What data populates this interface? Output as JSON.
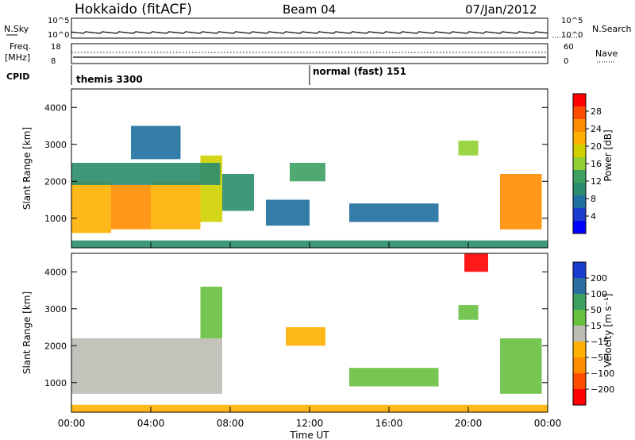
{
  "header": {
    "station": "Hokkaido (fitACF)",
    "beam": "Beam 04",
    "date": "07/Jan/2012"
  },
  "noise_panel": {
    "left_label": "N.Sky",
    "right_label": "N.Search",
    "left_ticks": [
      "10^5",
      "10^0"
    ],
    "right_ticks": [
      "10^5",
      "10^0"
    ]
  },
  "freq_panel": {
    "left_label": "Freq.",
    "left_unit": "[MHz]",
    "right_label": "Nave",
    "left_ticks": [
      "18",
      "8"
    ],
    "right_ticks": [
      "60",
      "0"
    ]
  },
  "cpid_panel": {
    "label": "CPID",
    "modes": [
      "themis 3300",
      "normal (fast) 151"
    ]
  },
  "power_colorbar": {
    "title": "Power [dB]",
    "ticks": [
      "28",
      "24",
      "20",
      "16",
      "12",
      "8",
      "4"
    ],
    "colors": [
      "#ff0000",
      "#ff4b00",
      "#ff8c00",
      "#ffb000",
      "#d0d000",
      "#90d030",
      "#3da060",
      "#2a8c6e",
      "#1f6fa0",
      "#1b3cd0",
      "#0000ff"
    ]
  },
  "velocity_colorbar": {
    "title": "Velocity [m s⁻¹]",
    "ticks": [
      "200",
      "100",
      "50",
      "15",
      "−15",
      "−50",
      "−100",
      "−200"
    ],
    "colors": [
      "#1b3cd0",
      "#2a6fa0",
      "#3da060",
      "#68c040",
      "#bdbdb5",
      "#ffb000",
      "#ff8c00",
      "#ff4b00",
      "#ff0000"
    ]
  },
  "chart_data": {
    "type": "heatmap",
    "title": "Hokkaido (fitACF)  Beam 04  07/Jan/2012",
    "xlabel": "Time UT",
    "x_ticks": [
      "00:00",
      "04:00",
      "08:00",
      "12:00",
      "16:00",
      "20:00",
      "00:00"
    ],
    "xlim_hours": [
      0,
      24
    ],
    "ylabel": "Slant Range [km]",
    "y_ticks": [
      1000,
      2000,
      3000,
      4000
    ],
    "ylim": [
      200,
      4500
    ],
    "panels": [
      {
        "name": "Power",
        "unit": "dB",
        "clim": [
          0,
          30
        ],
        "regions": [
          {
            "t0": 0.0,
            "t1": 2.0,
            "r0": 600,
            "r1": 2000,
            "value": 22
          },
          {
            "t0": 2.0,
            "t1": 4.0,
            "r0": 700,
            "r1": 1900,
            "value": 23
          },
          {
            "t0": 4.0,
            "t1": 6.5,
            "r0": 700,
            "r1": 2000,
            "value": 22
          },
          {
            "t0": 6.5,
            "t1": 7.6,
            "r0": 900,
            "r1": 2700,
            "value": 18
          },
          {
            "t0": 7.6,
            "t1": 9.2,
            "r0": 1200,
            "r1": 2200,
            "value": 10
          },
          {
            "t0": 0.0,
            "t1": 7.5,
            "r0": 1900,
            "r1": 2500,
            "value": 10
          },
          {
            "t0": 3.0,
            "t1": 5.5,
            "r0": 2600,
            "r1": 3500,
            "value": 5
          },
          {
            "t0": 9.8,
            "t1": 12.0,
            "r0": 800,
            "r1": 1500,
            "value": 5
          },
          {
            "t0": 11.0,
            "t1": 12.8,
            "r0": 2000,
            "r1": 2500,
            "value": 12
          },
          {
            "t0": 14.0,
            "t1": 18.5,
            "r0": 900,
            "r1": 1400,
            "value": 7
          },
          {
            "t0": 19.5,
            "t1": 20.5,
            "r0": 2700,
            "r1": 3100,
            "value": 14
          },
          {
            "t0": 21.6,
            "t1": 23.7,
            "r0": 700,
            "r1": 2200,
            "value": 24
          },
          {
            "t0": 0.0,
            "t1": 24.0,
            "r0": 200,
            "r1": 400,
            "value": 8
          }
        ]
      },
      {
        "name": "Velocity",
        "unit": "m s^-1",
        "clim": [
          -200,
          200
        ],
        "regions": [
          {
            "t0": 0.0,
            "t1": 7.6,
            "r0": 700,
            "r1": 2200,
            "value": 0
          },
          {
            "t0": 6.5,
            "t1": 7.6,
            "r0": 2200,
            "r1": 3600,
            "value": 60
          },
          {
            "t0": 10.8,
            "t1": 12.8,
            "r0": 2000,
            "r1": 2500,
            "value": -50
          },
          {
            "t0": 14.0,
            "t1": 18.5,
            "r0": 900,
            "r1": 1400,
            "value": 30
          },
          {
            "t0": 19.5,
            "t1": 20.5,
            "r0": 2700,
            "r1": 3100,
            "value": 40
          },
          {
            "t0": 21.6,
            "t1": 23.7,
            "r0": 700,
            "r1": 2200,
            "value": 30
          },
          {
            "t0": 19.8,
            "t1": 21.0,
            "r0": 4000,
            "r1": 4500,
            "value": -200
          },
          {
            "t0": 0.0,
            "t1": 24.0,
            "r0": 200,
            "r1": 400,
            "value": -40
          }
        ]
      }
    ]
  }
}
